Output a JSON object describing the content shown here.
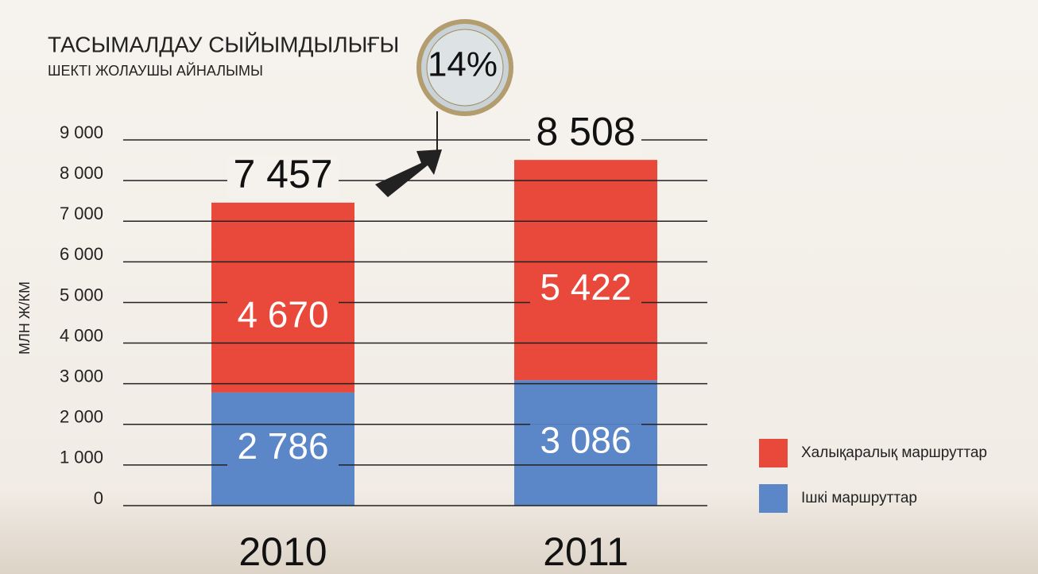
{
  "chart_data": {
    "type": "stacked_bar",
    "title": "ТАСЫМАЛДАУ СЫЙЫМДЫЛЫҒЫ",
    "subtitle": "ШЕКТІ ЖОЛАУШЫ АЙНАЛЫМЫ",
    "y_label": "МЛН Ж/КМ",
    "annotation": "14%",
    "categories": [
      "2010",
      "2011"
    ],
    "series": [
      {
        "name": "Ішкі маршруттар",
        "color": "#5b86c8",
        "values": [
          2786,
          3086
        ],
        "value_labels": [
          "2 786",
          "3 086"
        ]
      },
      {
        "name": "Халықаралық маршруттар",
        "color": "#e8493a",
        "values": [
          4670,
          5422
        ],
        "value_labels": [
          "4 670",
          "5 422"
        ]
      }
    ],
    "totals": {
      "values": [
        7457,
        8508
      ],
      "value_labels": [
        "7 457",
        "8 508"
      ]
    },
    "ylim": [
      0,
      9000
    ],
    "yticks": [
      0,
      {
        "value": 1000,
        "label": "1 000"
      },
      {
        "value": 2000,
        "label": "2 000"
      },
      {
        "value": 3000,
        "label": "3 000"
      },
      {
        "value": 4000,
        "label": "4 000"
      },
      {
        "value": 5000,
        "label": "5 000"
      },
      {
        "value": 6000,
        "label": "6 000"
      },
      {
        "value": 7000,
        "label": "7 000"
      },
      {
        "value": 8000,
        "label": "8 000"
      },
      {
        "value": 9000,
        "label": "9 000"
      }
    ],
    "grid": true
  }
}
